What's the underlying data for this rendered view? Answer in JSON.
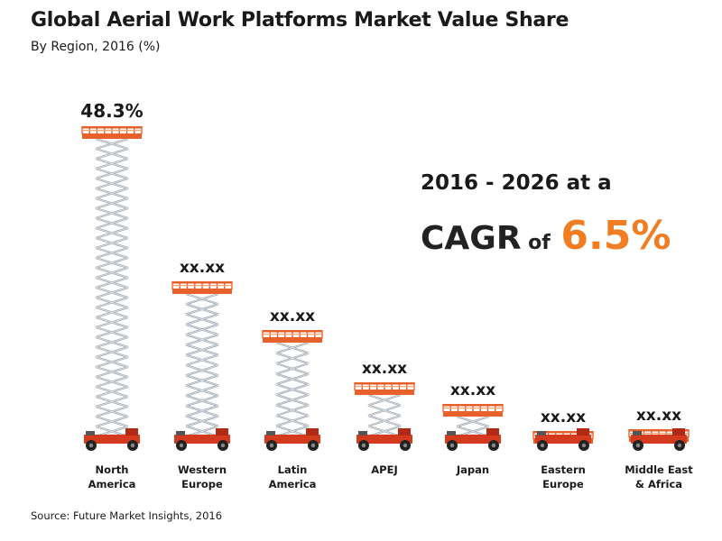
{
  "chart_data": {
    "type": "bar",
    "title": "Global Aerial Work Platforms Market Value Share",
    "subtitle": "By Region, 2016 (%)",
    "categories": [
      [
        "North",
        "America"
      ],
      [
        "Western",
        "Europe"
      ],
      [
        "Latin",
        "America"
      ],
      [
        "APEJ"
      ],
      [
        "Japan"
      ],
      [
        "Eastern",
        "Europe"
      ],
      [
        "Middle East",
        "& Africa"
      ]
    ],
    "data_labels": [
      "48.3%",
      "xx.xx",
      "xx.xx",
      "xx.xx",
      "xx.xx",
      "xx.xx",
      "xx.xx"
    ],
    "values": [
      48.3,
      null,
      null,
      null,
      null,
      null,
      null
    ],
    "legend": "none",
    "grid": false,
    "colors": {
      "platform": "#e8602a",
      "scissor": "#9aa2aa",
      "base": "#d43a1e",
      "wheel": "#222222",
      "accent": "#f07d22"
    }
  },
  "callout": {
    "line1": "2016 - 2026 at a",
    "cagr_word": "CAGR",
    "of_word": "of",
    "cagr_value": "6.5%"
  },
  "source": "Source: Future Market Insights, 2016"
}
